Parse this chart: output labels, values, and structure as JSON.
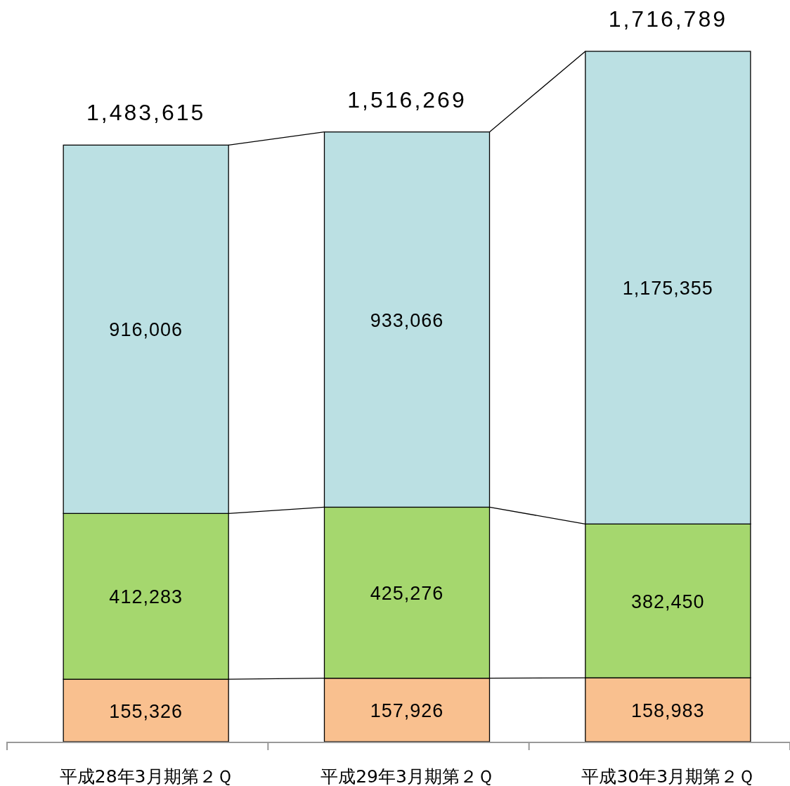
{
  "chart_data": {
    "type": "bar",
    "stacked": true,
    "categories": [
      "平成28年3月期第２Ｑ",
      "平成29年3月期第２Ｑ",
      "平成30年3月期第２Ｑ"
    ],
    "series": [
      {
        "color": "#f9c08f",
        "values": [
          155326,
          157926,
          158983
        ],
        "value_labels": [
          "155,326",
          "157,926",
          "158,983"
        ]
      },
      {
        "color": "#a5d76e",
        "values": [
          412283,
          425276,
          382450
        ],
        "value_labels": [
          "412,283",
          "425,276",
          "382,450"
        ]
      },
      {
        "color": "#bbe0e3",
        "values": [
          916006,
          933066,
          1175355
        ],
        "value_labels": [
          "916,006",
          "933,066",
          "1,175,355"
        ]
      }
    ],
    "totals": [
      "1,483,615",
      "1,516,269",
      "1,716,789"
    ]
  }
}
